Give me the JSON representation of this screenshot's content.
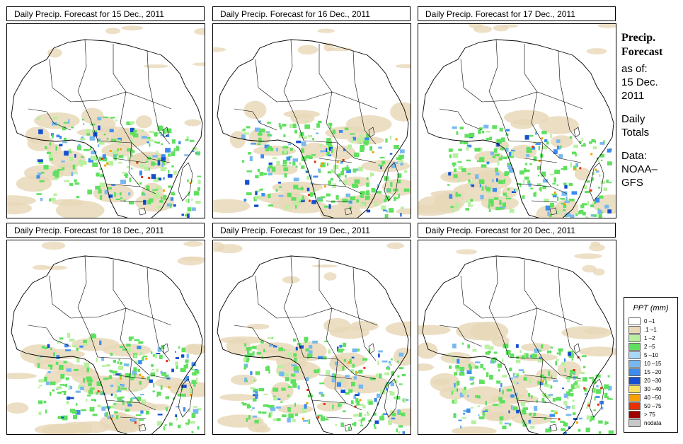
{
  "panels": [
    {
      "title": "Daily Precip. Forecast for  15 Dec., 2011"
    },
    {
      "title": "Daily Precip. Forecast for  16 Dec., 2011"
    },
    {
      "title": "Daily Precip. Forecast for  17 Dec., 2011"
    },
    {
      "title": "Daily Precip. Forecast for  18 Dec., 2011"
    },
    {
      "title": "Daily Precip. Forecast for  19 Dec., 2011"
    },
    {
      "title": "Daily Precip. Forecast for  20 Dec., 2011"
    }
  ],
  "side_text": {
    "line1": "Precip.",
    "line2": "Forecast",
    "as_of": "as of:",
    "date": "15 Dec.",
    "year": "2011",
    "daily": "Daily",
    "totals": "Totals",
    "data_label": "Data:",
    "source1": "NOAA–",
    "source2": "GFS"
  },
  "legend": {
    "title": "PPT (mm)",
    "items": [
      {
        "label": "0 –1",
        "color": "#ffffff"
      },
      {
        "label": ".1 –1",
        "color": "#e8d8b8"
      },
      {
        "label": "1 –2",
        "color": "#b8f0a0"
      },
      {
        "label": "2 –5",
        "color": "#5fe05f"
      },
      {
        "label": "5 –10",
        "color": "#a8d8f8"
      },
      {
        "label": "10 –15",
        "color": "#78b8f0"
      },
      {
        "label": "15 –20",
        "color": "#3c8cf0"
      },
      {
        "label": "20 –30",
        "color": "#1450d0"
      },
      {
        "label": "30 –40",
        "color": "#f8e060"
      },
      {
        "label": "40 –50",
        "color": "#f8a000"
      },
      {
        "label": "50 –75",
        "color": "#e83000"
      },
      {
        "label": "> 75",
        "color": "#a00000"
      },
      {
        "label": "nodata",
        "color": "#c8c8c8"
      }
    ]
  }
}
